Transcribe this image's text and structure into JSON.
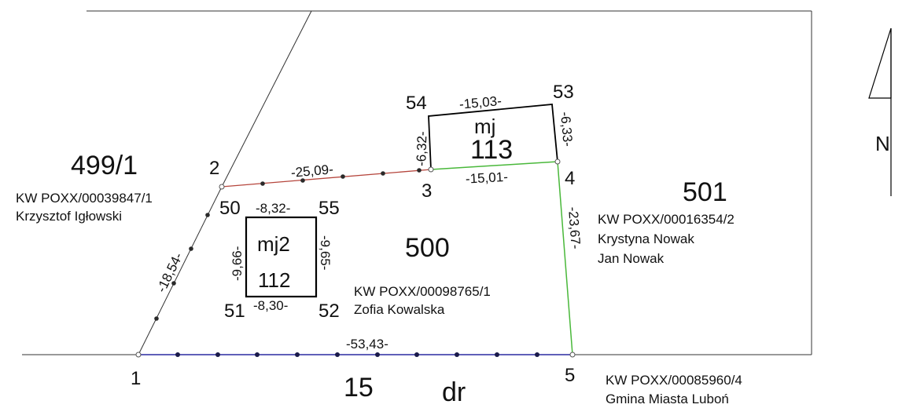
{
  "parcels": [
    {
      "id": "499/1",
      "kw": "KW POXX/00039847/1",
      "owner": "Krzysztof Igłowski"
    },
    {
      "id": "500",
      "kw": "KW POXX/00098765/1",
      "owner": "Zofia Kowalska"
    },
    {
      "id": "501",
      "kw": "KW POXX/00016354/2",
      "owner_1": "Krystyna Nowak",
      "owner_2": "Jan Nowak"
    },
    {
      "id": "15",
      "kw": "KW POXX/00085960/4",
      "owner": "Gmina Miasta Luboń",
      "type": "dr"
    }
  ],
  "buildings": [
    {
      "type": "mj",
      "number": "113",
      "dims": {
        "top": "-15,03-",
        "bottom": "-15,01-",
        "left": "-6,32-",
        "right": "-6,33-"
      }
    },
    {
      "type": "mj2",
      "number": "112",
      "dims": {
        "top": "-8,32-",
        "bottom": "-8,30-",
        "left": "-9,66-",
        "right": "-9,65-"
      }
    }
  ],
  "points": {
    "p1": "1",
    "p2": "2",
    "p3": "3",
    "p4": "4",
    "p5": "5",
    "p50": "50",
    "p51": "51",
    "p52": "52",
    "p53": "53",
    "p54": "54",
    "p55": "55"
  },
  "boundary_dims": {
    "d1_2": "-18,54-",
    "d2_3": "-25,09-",
    "d4_5": "-23,67-",
    "d1_5": "-53,43-"
  },
  "north_label": "N",
  "colors": {
    "line": "#000000",
    "red_boundary": "#b5453c",
    "green_boundary": "#49b83a",
    "blue_boundary": "#2a2aa0"
  }
}
